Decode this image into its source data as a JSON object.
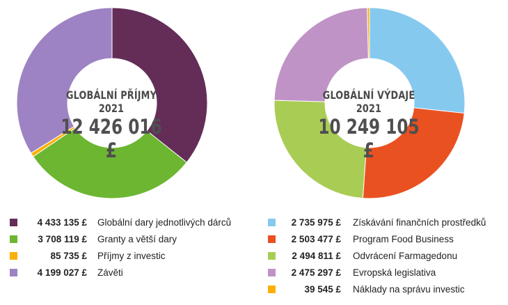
{
  "chart_data": [
    {
      "type": "pie",
      "title": "GLOBÁLNÍ PŘÍJMY 2021",
      "total": "12 426 016 £",
      "categories": [
        "Globální dary jednotlivých dárců",
        "Granty a větší dary",
        "Příjmy z investic",
        "Závěti"
      ],
      "display_values": [
        "4 433 135 £",
        "3 708 119 £",
        "85 735 £",
        "4 199 027 £"
      ],
      "values": [
        4433135,
        3708119,
        85735,
        4199027
      ],
      "colors": [
        "#642d58",
        "#6cb631",
        "#fbb008",
        "#9d83c3"
      ]
    },
    {
      "type": "pie",
      "title": "GLOBÁLNÍ VÝDAJE 2021",
      "total": "10 249 105 £",
      "categories": [
        "Získávání finančních prostředků",
        "Program Food Business",
        "Odvrácení Farmagedonu",
        "Evropská legislativa",
        "Náklady na správu investic"
      ],
      "display_values": [
        "2 735 975 £",
        "2 503 477 £",
        "2 494 811 £",
        "2 475 297 £",
        "39 545 £"
      ],
      "values": [
        2735975,
        2503477,
        2494811,
        2475297,
        39545
      ],
      "colors": [
        "#86c9ef",
        "#ea5121",
        "#a9cc55",
        "#c093c6",
        "#fbb008"
      ]
    }
  ]
}
